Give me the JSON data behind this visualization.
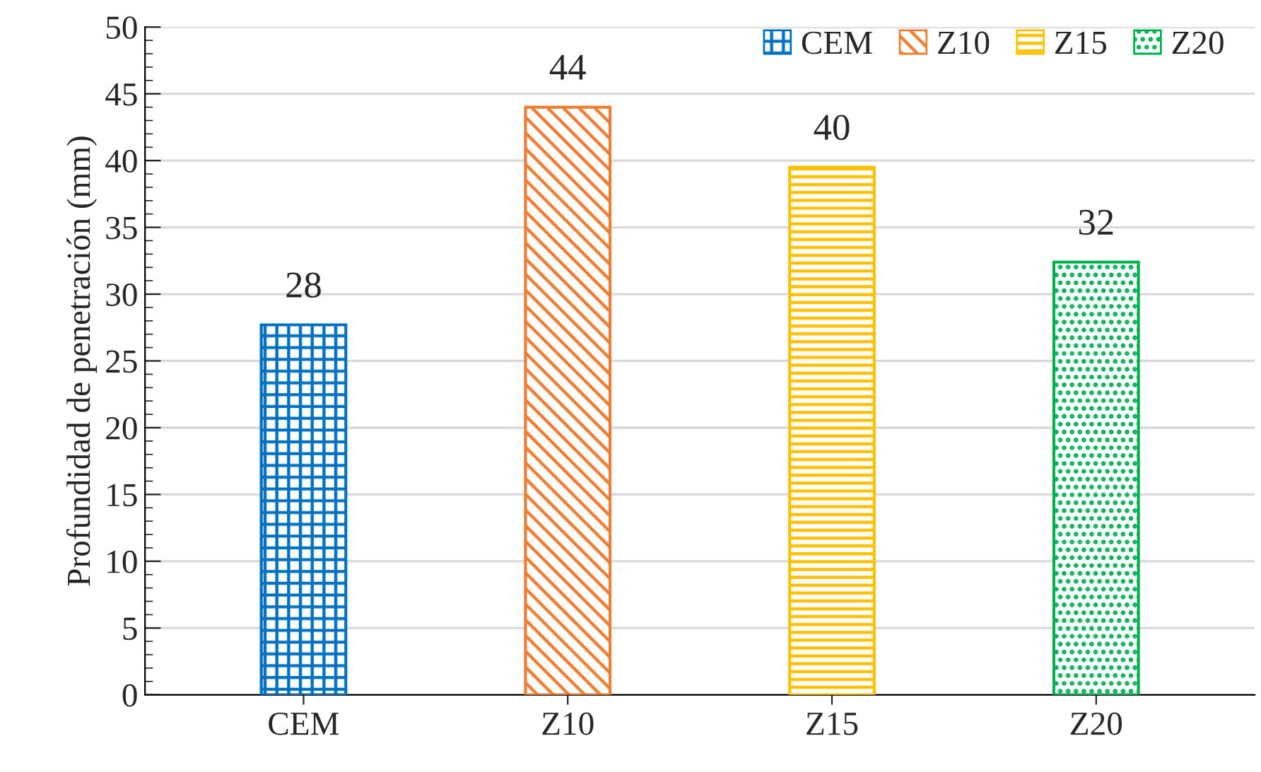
{
  "chart_data": {
    "type": "bar",
    "categories": [
      "CEM",
      "Z10",
      "Z15",
      "Z20"
    ],
    "series": [
      {
        "name": "CEM",
        "color": "#0070c0",
        "values": [
          27.7,
          null,
          null,
          null
        ],
        "value_labels": [
          "28",
          null,
          null,
          null
        ]
      },
      {
        "name": "Z10",
        "color": "#ed7d31",
        "values": [
          null,
          44.0,
          null,
          null
        ],
        "value_labels": [
          null,
          "44",
          null,
          null
        ]
      },
      {
        "name": "Z15",
        "color": "#ffc000",
        "values": [
          null,
          null,
          39.5,
          null
        ],
        "value_labels": [
          null,
          null,
          "40",
          null
        ]
      },
      {
        "name": "Z20",
        "color": "#00b050",
        "values": [
          null,
          null,
          null,
          32.4
        ],
        "value_labels": [
          null,
          null,
          null,
          "32"
        ]
      }
    ],
    "ylabel": "Profundidad de penetración (mm)",
    "ylim": [
      0,
      50
    ],
    "yticks": [
      0,
      5,
      10,
      15,
      20,
      25,
      30,
      35,
      40,
      45,
      50
    ],
    "grid": "y",
    "legend": "top right"
  }
}
